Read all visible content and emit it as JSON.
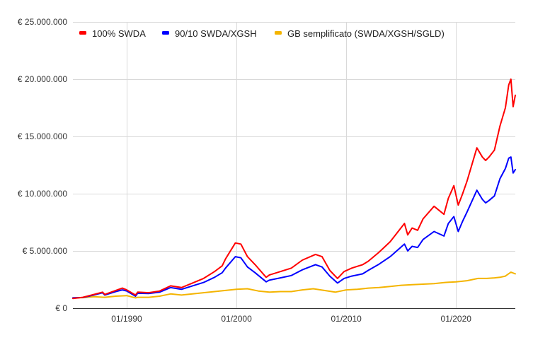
{
  "chart_data": {
    "type": "line",
    "title": "",
    "xlabel": "",
    "ylabel": "",
    "x_ticks": [
      "01/1990",
      "01/2000",
      "01/2010",
      "01/2020"
    ],
    "y_ticks": [
      "€ 0",
      "€ 5.000.000",
      "€ 10.000.000",
      "€ 15.000.000",
      "€ 20.000.000",
      "€ 25.000.000"
    ],
    "xlim": [
      1985.1,
      2025.4
    ],
    "ylim": [
      0,
      25000000
    ],
    "grid": true,
    "legend_position": "top-left",
    "series": [
      {
        "name": "100% SWDA",
        "color": "#ff0000",
        "x": [
          1985.1,
          1986,
          1987,
          1987.8,
          1988,
          1989,
          1989.6,
          1990,
          1990.8,
          1991,
          1992,
          1993,
          1994,
          1995,
          1996,
          1997,
          1998,
          1998.7,
          1999,
          1999.9,
          2000.4,
          2001,
          2001.7,
          2002.7,
          2003,
          2004,
          2005,
          2006,
          2007.2,
          2007.8,
          2008.5,
          2009.2,
          2009.8,
          2010.5,
          2011.5,
          2012,
          2013,
          2014,
          2015.3,
          2015.6,
          2016,
          2016.5,
          2017,
          2018,
          2018.9,
          2019.3,
          2019.8,
          2020.2,
          2020.6,
          2021,
          2021.9,
          2022.4,
          2022.7,
          2023,
          2023.5,
          2024,
          2024.5,
          2024.8,
          2025,
          2025.2,
          2025.4
        ],
        "y": [
          850000,
          950000,
          1200000,
          1400000,
          1200000,
          1550000,
          1750000,
          1600000,
          1150000,
          1400000,
          1350000,
          1500000,
          1950000,
          1800000,
          2200000,
          2600000,
          3200000,
          3700000,
          4300000,
          5700000,
          5600000,
          4500000,
          3800000,
          2700000,
          2900000,
          3200000,
          3500000,
          4200000,
          4700000,
          4500000,
          3300000,
          2600000,
          3200000,
          3500000,
          3800000,
          4100000,
          4900000,
          5800000,
          7400000,
          6400000,
          7000000,
          6800000,
          7800000,
          8900000,
          8200000,
          9600000,
          10700000,
          9000000,
          10000000,
          11100000,
          14000000,
          13200000,
          12900000,
          13200000,
          13800000,
          15900000,
          17500000,
          19500000,
          20000000,
          17600000,
          18600000
        ]
      },
      {
        "name": "90/10 SWDA/XGSH",
        "color": "#0000ff",
        "x": [
          1985.1,
          1986,
          1987,
          1987.8,
          1988,
          1989,
          1989.6,
          1990,
          1990.8,
          1991,
          1992,
          1993,
          1994,
          1995,
          1996,
          1997,
          1998,
          1998.7,
          1999,
          1999.9,
          2000.4,
          2001,
          2001.7,
          2002.7,
          2003,
          2004,
          2005,
          2006,
          2007.2,
          2007.8,
          2008.5,
          2009.2,
          2009.8,
          2010.5,
          2011.5,
          2012,
          2013,
          2014,
          2015.3,
          2015.6,
          2016,
          2016.5,
          2017,
          2018,
          2018.9,
          2019.3,
          2019.8,
          2020.2,
          2020.6,
          2021,
          2021.9,
          2022.4,
          2022.7,
          2023,
          2023.5,
          2024,
          2024.5,
          2024.8,
          2025,
          2025.2,
          2025.4
        ],
        "y": [
          900000,
          930000,
          1150000,
          1350000,
          1150000,
          1450000,
          1600000,
          1500000,
          1050000,
          1300000,
          1280000,
          1400000,
          1800000,
          1650000,
          1950000,
          2250000,
          2700000,
          3100000,
          3500000,
          4500000,
          4400000,
          3600000,
          3100000,
          2300000,
          2450000,
          2650000,
          2850000,
          3350000,
          3800000,
          3600000,
          2800000,
          2200000,
          2600000,
          2800000,
          3000000,
          3300000,
          3850000,
          4500000,
          5600000,
          5000000,
          5400000,
          5300000,
          6000000,
          6700000,
          6300000,
          7400000,
          8000000,
          6700000,
          7600000,
          8400000,
          10300000,
          9500000,
          9200000,
          9400000,
          9800000,
          11300000,
          12200000,
          13100000,
          13200000,
          11800000,
          12100000
        ]
      },
      {
        "name": "GB semplificato (SWDA/XGSH/SGLD)",
        "color": "#f4b400",
        "x": [
          1985.1,
          1986,
          1987,
          1988,
          1989,
          1990,
          1990.8,
          1991,
          1992,
          1993,
          1994,
          1995,
          1996,
          1997,
          1998,
          1999,
          2000,
          2001,
          2002,
          2003,
          2004,
          2005,
          2006,
          2007,
          2008,
          2009,
          2010,
          2011,
          2012,
          2013,
          2014,
          2015,
          2016,
          2017,
          2018,
          2019,
          2020,
          2021,
          2022,
          2022.8,
          2023.5,
          2024,
          2024.5,
          2025,
          2025.4
        ],
        "y": [
          900000,
          920000,
          1000000,
          950000,
          1050000,
          1100000,
          900000,
          950000,
          950000,
          1050000,
          1250000,
          1150000,
          1250000,
          1350000,
          1450000,
          1550000,
          1650000,
          1700000,
          1500000,
          1400000,
          1450000,
          1450000,
          1600000,
          1700000,
          1550000,
          1400000,
          1600000,
          1650000,
          1750000,
          1800000,
          1900000,
          2000000,
          2050000,
          2100000,
          2150000,
          2250000,
          2300000,
          2400000,
          2600000,
          2600000,
          2650000,
          2700000,
          2800000,
          3150000,
          3000000
        ]
      }
    ]
  }
}
